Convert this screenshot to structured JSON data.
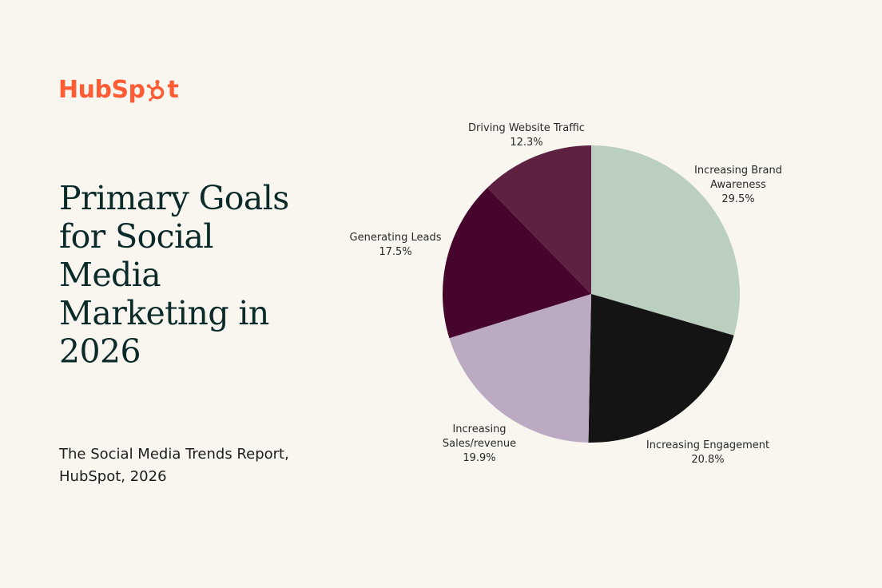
{
  "brand": {
    "name_before": "HubSp",
    "name_after": "t",
    "color": "#ff5c35"
  },
  "title": "Primary Goals for Social Media Marketing in 2026",
  "source": "The Social Media Trends Report, HubSpot, 2026",
  "background": "#f9f6ef",
  "chart_data": {
    "type": "pie",
    "unit": "%",
    "start_angle_deg": 0,
    "direction": "clockwise",
    "slices": [
      {
        "label_lines": [
          "Increasing Brand",
          "Awareness"
        ],
        "value": 29.5,
        "value_label": "29.5%",
        "color": "#bacfc0"
      },
      {
        "label_lines": [
          "Increasing Engagement"
        ],
        "value": 20.8,
        "value_label": "20.8%",
        "color": "#141414"
      },
      {
        "label_lines": [
          "Increasing",
          "Sales/revenue"
        ],
        "value": 19.9,
        "value_label": "19.9%",
        "color": "#bca9c2"
      },
      {
        "label_lines": [
          "Generating Leads"
        ],
        "value": 17.5,
        "value_label": "17.5%",
        "color": "#46052b"
      },
      {
        "label_lines": [
          "Driving Website Traffic"
        ],
        "value": 12.3,
        "value_label": "12.3%",
        "color": "#5e2142"
      }
    ]
  }
}
